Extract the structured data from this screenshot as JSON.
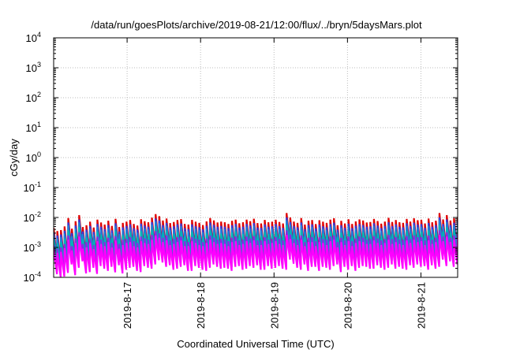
{
  "chart_data": {
    "type": "line",
    "title": "/data/run/goesPlots/archive/2019-08-21/12:00/flux/../bryn/5daysMars.plot",
    "xlabel": "Coordinated Universal Time (UTC)",
    "ylabel": "cGy/day",
    "yscale": "log",
    "ylim": [
      0.0001,
      10000
    ],
    "xlim": [
      "2019-08-16 00:00",
      "2019-08-21 12:00"
    ],
    "y_ticks": [
      {
        "base": "10",
        "exp": "-4",
        "value": 0.0001
      },
      {
        "base": "10",
        "exp": "-3",
        "value": 0.001
      },
      {
        "base": "10",
        "exp": "-2",
        "value": 0.01
      },
      {
        "base": "10",
        "exp": "-1",
        "value": 0.1
      },
      {
        "base": "10",
        "exp": "0",
        "value": 1
      },
      {
        "base": "10",
        "exp": "1",
        "value": 10
      },
      {
        "base": "10",
        "exp": "2",
        "value": 100
      },
      {
        "base": "10",
        "exp": "3",
        "value": 1000
      },
      {
        "base": "10",
        "exp": "4",
        "value": 10000
      }
    ],
    "x_ticks": [
      {
        "label": "2019-8-17",
        "value": "2019-08-17 00:00"
      },
      {
        "label": "2019-8-18",
        "value": "2019-08-18 00:00"
      },
      {
        "label": "2019-8-19",
        "value": "2019-08-19 00:00"
      },
      {
        "label": "2019-8-20",
        "value": "2019-08-20 00:00"
      },
      {
        "label": "2019-8-21",
        "value": "2019-08-21 00:00"
      }
    ],
    "grid": true,
    "legend": "none",
    "series": [
      {
        "color": "#e00000",
        "values": [
          0.0045,
          0.0035,
          0.0038,
          0.005,
          0.0095,
          0.0042,
          0.0075,
          0.012,
          0.0048,
          0.0055,
          0.0072,
          0.0046,
          0.0085,
          0.0068,
          0.0058,
          0.0078,
          0.0052,
          0.009,
          0.0048,
          0.0066,
          0.0073,
          0.0082,
          0.0061,
          0.0054,
          0.0087,
          0.0075,
          0.0069,
          0.0098,
          0.013,
          0.011,
          0.0079,
          0.0092,
          0.0065,
          0.0071,
          0.0082,
          0.0088,
          0.0061,
          0.0058,
          0.0083,
          0.0072,
          0.0066,
          0.0056,
          0.0074,
          0.0095,
          0.008,
          0.0068,
          0.0073,
          0.0069,
          0.0061,
          0.0077,
          0.0085,
          0.0064,
          0.0069,
          0.0085,
          0.0075,
          0.0091,
          0.0065,
          0.0063,
          0.0083,
          0.0069,
          0.0072,
          0.0084,
          0.0071,
          0.0063,
          0.014,
          0.01,
          0.0073,
          0.0066,
          0.0095,
          0.0058,
          0.0078,
          0.0082,
          0.006,
          0.0081,
          0.0072,
          0.0066,
          0.0085,
          0.0094,
          0.0055,
          0.0077,
          0.0063,
          0.0087,
          0.0061,
          0.0074,
          0.0086,
          0.0079,
          0.0068,
          0.0071,
          0.0089,
          0.0076,
          0.0062,
          0.0073,
          0.0097,
          0.0071,
          0.0082,
          0.0069,
          0.0066,
          0.0089,
          0.0073,
          0.0094,
          0.0081,
          0.0084,
          0.0063,
          0.0092,
          0.0069,
          0.0078,
          0.014,
          0.0086,
          0.012,
          0.0079,
          0.0094,
          0.0105
        ]
      },
      {
        "color": "#3a3ad8",
        "values": [
          0.0032,
          0.0025,
          0.0027,
          0.0036,
          0.0068,
          0.003,
          0.0054,
          0.0086,
          0.0034,
          0.0039,
          0.0052,
          0.0033,
          0.0061,
          0.0049,
          0.0041,
          0.0056,
          0.0037,
          0.0064,
          0.0034,
          0.0047,
          0.0052,
          0.0059,
          0.0044,
          0.0039,
          0.0062,
          0.0054,
          0.0049,
          0.007,
          0.0093,
          0.0079,
          0.0056,
          0.0066,
          0.0046,
          0.0051,
          0.0059,
          0.0063,
          0.0044,
          0.0041,
          0.0059,
          0.0051,
          0.0047,
          0.004,
          0.0053,
          0.0068,
          0.0057,
          0.0049,
          0.0052,
          0.0049,
          0.0044,
          0.0055,
          0.0061,
          0.0046,
          0.0049,
          0.0061,
          0.0054,
          0.0065,
          0.0046,
          0.0045,
          0.0059,
          0.0049,
          0.0051,
          0.006,
          0.0051,
          0.0045,
          0.01,
          0.0071,
          0.0052,
          0.0047,
          0.0068,
          0.0041,
          0.0056,
          0.0059,
          0.0043,
          0.0058,
          0.0051,
          0.0047,
          0.0061,
          0.0067,
          0.0039,
          0.0055,
          0.0045,
          0.0062,
          0.0044,
          0.0053,
          0.0061,
          0.0056,
          0.0049,
          0.0051,
          0.0064,
          0.0054,
          0.0044,
          0.0052,
          0.0069,
          0.0051,
          0.0059,
          0.0049,
          0.0047,
          0.0064,
          0.0052,
          0.0067,
          0.0058,
          0.006,
          0.0045,
          0.0066,
          0.0049,
          0.0056,
          0.01,
          0.0061,
          0.0086,
          0.0056,
          0.0067,
          0.0075
        ]
      },
      {
        "color": "#1e7ed8",
        "values": [
          0.0026,
          0.002,
          0.0022,
          0.0029,
          0.0055,
          0.0024,
          0.0043,
          0.0069,
          0.0028,
          0.0032,
          0.0042,
          0.0027,
          0.0049,
          0.0039,
          0.0034,
          0.0045,
          0.003,
          0.0052,
          0.0028,
          0.0038,
          0.0042,
          0.0047,
          0.0035,
          0.0031,
          0.005,
          0.0043,
          0.004,
          0.0057,
          0.0075,
          0.0064,
          0.0046,
          0.0053,
          0.0038,
          0.0041,
          0.0047,
          0.0051,
          0.0035,
          0.0034,
          0.0048,
          0.0042,
          0.0038,
          0.0032,
          0.0043,
          0.0055,
          0.0046,
          0.0039,
          0.0042,
          0.004,
          0.0035,
          0.0045,
          0.0049,
          0.0037,
          0.004,
          0.0049,
          0.0043,
          0.0053,
          0.0038,
          0.0037,
          0.0048,
          0.004,
          0.0042,
          0.0049,
          0.0041,
          0.0037,
          0.0081,
          0.0058,
          0.0042,
          0.0038,
          0.0055,
          0.0034,
          0.0045,
          0.0048,
          0.0035,
          0.0047,
          0.0042,
          0.0038,
          0.0049,
          0.0055,
          0.0032,
          0.0045,
          0.0037,
          0.005,
          0.0035,
          0.0043,
          0.005,
          0.0046,
          0.0039,
          0.0041,
          0.0052,
          0.0044,
          0.0036,
          0.0042,
          0.0056,
          0.0041,
          0.0048,
          0.004,
          0.0038,
          0.0052,
          0.0042,
          0.0055,
          0.0047,
          0.0049,
          0.0037,
          0.0053,
          0.004,
          0.0045,
          0.0081,
          0.005,
          0.007,
          0.0046,
          0.0055,
          0.0061
        ]
      },
      {
        "color": "#00b4b4",
        "values": [
          0.0018,
          0.0014,
          0.0015,
          0.002,
          0.0038,
          0.0017,
          0.003,
          0.0048,
          0.0019,
          0.0022,
          0.0029,
          0.0018,
          0.0034,
          0.0027,
          0.0023,
          0.0031,
          0.0021,
          0.0036,
          0.0019,
          0.0026,
          0.0029,
          0.0033,
          0.0024,
          0.0022,
          0.0035,
          0.003,
          0.0028,
          0.0039,
          0.0052,
          0.0044,
          0.0032,
          0.0037,
          0.0026,
          0.0028,
          0.0033,
          0.0035,
          0.0024,
          0.0023,
          0.0033,
          0.0029,
          0.0026,
          0.0022,
          0.003,
          0.0038,
          0.0032,
          0.0027,
          0.0029,
          0.0028,
          0.0024,
          0.0031,
          0.0034,
          0.0026,
          0.0028,
          0.0034,
          0.003,
          0.0036,
          0.0026,
          0.0025,
          0.0033,
          0.0028,
          0.0029,
          0.0034,
          0.0028,
          0.0025,
          0.0056,
          0.004,
          0.0029,
          0.0026,
          0.0038,
          0.0023,
          0.0031,
          0.0033,
          0.0024,
          0.0032,
          0.0029,
          0.0026,
          0.0034,
          0.0038,
          0.0022,
          0.0031,
          0.0025,
          0.0035,
          0.0024,
          0.003,
          0.0034,
          0.0032,
          0.0027,
          0.0028,
          0.0036,
          0.003,
          0.0025,
          0.0029,
          0.0039,
          0.0028,
          0.0033,
          0.0028,
          0.0026,
          0.0036,
          0.0029,
          0.0038,
          0.0032,
          0.0034,
          0.0025,
          0.0037,
          0.0028,
          0.0031,
          0.0056,
          0.0034,
          0.0048,
          0.0032,
          0.0038,
          0.0042
        ]
      },
      {
        "color": "#8a2be2",
        "values": [
          0.0012,
          0.0009,
          0.001,
          0.0013,
          0.0025,
          0.0011,
          0.002,
          0.0032,
          0.0013,
          0.0015,
          0.0019,
          0.0012,
          0.0023,
          0.0018,
          0.0015,
          0.0021,
          0.0014,
          0.0024,
          0.0013,
          0.0018,
          0.0019,
          0.0022,
          0.0016,
          0.0014,
          0.0023,
          0.002,
          0.0018,
          0.0026,
          0.0035,
          0.0029,
          0.0021,
          0.0025,
          0.0017,
          0.0019,
          0.0022,
          0.0023,
          0.0016,
          0.0015,
          0.0022,
          0.0019,
          0.0018,
          0.0015,
          0.002,
          0.0025,
          0.0021,
          0.0018,
          0.0019,
          0.0018,
          0.0016,
          0.0021,
          0.0023,
          0.0017,
          0.0018,
          0.0023,
          0.002,
          0.0024,
          0.0017,
          0.0017,
          0.0022,
          0.0018,
          0.0019,
          0.0022,
          0.0019,
          0.0017,
          0.0037,
          0.0027,
          0.0019,
          0.0018,
          0.0025,
          0.0015,
          0.0021,
          0.0022,
          0.0016,
          0.0022,
          0.0019,
          0.0018,
          0.0023,
          0.0025,
          0.0015,
          0.0021,
          0.0017,
          0.0023,
          0.0016,
          0.002,
          0.0023,
          0.0021,
          0.0018,
          0.0019,
          0.0024,
          0.002,
          0.0017,
          0.0019,
          0.0026,
          0.0019,
          0.0022,
          0.0018,
          0.0018,
          0.0024,
          0.0019,
          0.0025,
          0.0022,
          0.0022,
          0.0017,
          0.0025,
          0.0018,
          0.0021,
          0.0037,
          0.0023,
          0.0032,
          0.0021,
          0.0025,
          0.0028
        ]
      },
      {
        "color": "#ff00ff",
        "values": [
          0.00085,
          0.00066,
          0.00071,
          0.00094,
          0.0018,
          0.00079,
          0.0014,
          0.0023,
          0.0009,
          0.001,
          0.0014,
          0.00087,
          0.0016,
          0.0013,
          0.0011,
          0.0015,
          0.00098,
          0.0017,
          0.0009,
          0.0012,
          0.0014,
          0.0015,
          0.0011,
          0.001,
          0.0016,
          0.0014,
          0.0013,
          0.0018,
          0.0025,
          0.0021,
          0.0015,
          0.0017,
          0.0012,
          0.0013,
          0.0015,
          0.0017,
          0.0011,
          0.0011,
          0.0016,
          0.0014,
          0.0012,
          0.0011,
          0.0014,
          0.0018,
          0.0015,
          0.0013,
          0.0014,
          0.0013,
          0.0011,
          0.0015,
          0.0016,
          0.0012,
          0.0013,
          0.0016,
          0.0014,
          0.0017,
          0.0012,
          0.0012,
          0.0016,
          0.0013,
          0.0014,
          0.0016,
          0.0013,
          0.0012,
          0.0026,
          0.0019,
          0.0014,
          0.0012,
          0.0018,
          0.0011,
          0.0015,
          0.0015,
          0.0011,
          0.0015,
          0.0014,
          0.0012,
          0.0016,
          0.0018,
          0.001,
          0.0015,
          0.0012,
          0.0016,
          0.0011,
          0.0014,
          0.0016,
          0.0015,
          0.0013,
          0.0013,
          0.0017,
          0.0014,
          0.0012,
          0.0014,
          0.0018,
          0.0013,
          0.0015,
          0.0013,
          0.0012,
          0.0017,
          0.0014,
          0.0018,
          0.0015,
          0.0016,
          0.0012,
          0.0017,
          0.0013,
          0.0015,
          0.0026,
          0.0016,
          0.0023,
          0.0015,
          0.0018,
          0.002
        ]
      }
    ]
  }
}
